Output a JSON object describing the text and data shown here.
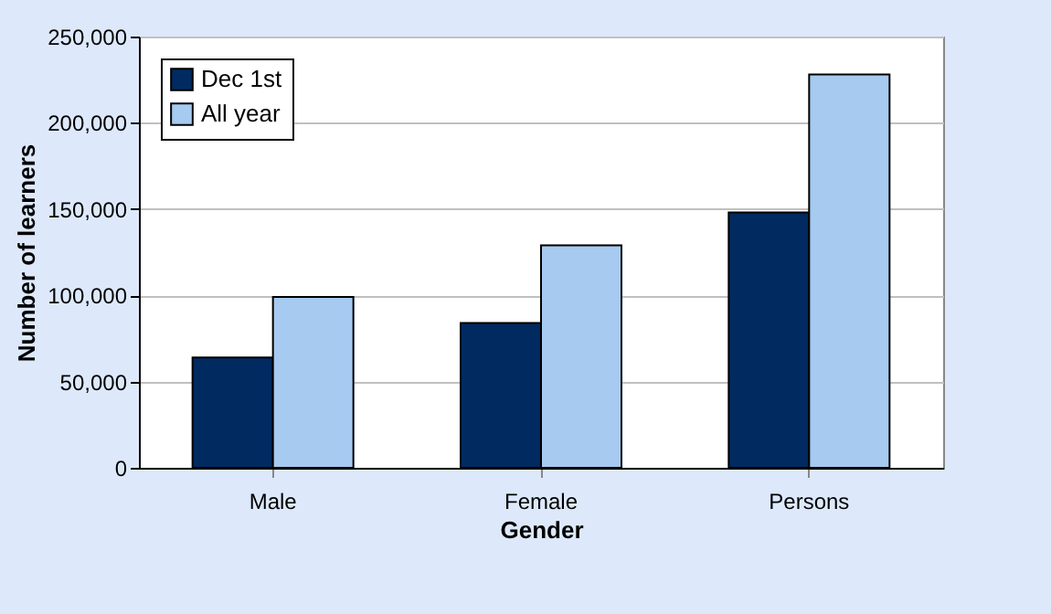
{
  "chart_data": {
    "type": "bar",
    "xlabel": "Gender",
    "ylabel": "Number of learners",
    "categories": [
      "Male",
      "Female",
      "Persons"
    ],
    "series": [
      {
        "name": "Dec 1st",
        "color": "#002a60",
        "values": [
          64000,
          84000,
          148000
        ]
      },
      {
        "name": "All year",
        "color": "#a6caf0",
        "values": [
          99000,
          129000,
          228000
        ]
      }
    ],
    "ylim": [
      0,
      250000
    ],
    "yticks": [
      {
        "value": 0,
        "label": "0"
      },
      {
        "value": 50000,
        "label": "50,000"
      },
      {
        "value": 100000,
        "label": "100,000"
      },
      {
        "value": 150000,
        "label": "150,000"
      },
      {
        "value": 200000,
        "label": "200,000"
      },
      {
        "value": 250000,
        "label": "250,000"
      }
    ],
    "grid": "y",
    "legend": "top left"
  }
}
